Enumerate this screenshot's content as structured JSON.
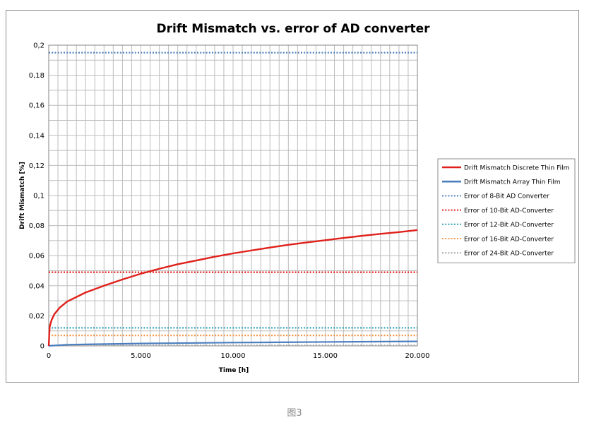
{
  "chart_data": {
    "type": "line",
    "title": "Drift Mismatch vs. error of AD converter",
    "xlabel": "Time [h]",
    "ylabel": "Drift Mismatch [%]",
    "xlim": [
      0,
      20000
    ],
    "ylim": [
      0,
      0.2
    ],
    "x_ticks": [
      "0",
      "5.000",
      "10.000",
      "15.000",
      "20.000"
    ],
    "y_ticks": [
      "0",
      "0,02",
      "0,04",
      "0,06",
      "0,08",
      "0,1",
      "0,12",
      "0,14",
      "0,16",
      "0,18",
      "0,2"
    ],
    "grid": true,
    "legend_position": "right",
    "series": [
      {
        "name": "Drift Mismatch Discrete Thin Film",
        "color": "#e0201b",
        "style": "solid",
        "x": [
          0,
          50,
          150,
          300,
          600,
          1000,
          2000,
          3000,
          4000,
          5000,
          6000,
          7000,
          8000,
          9000,
          10000,
          11000,
          12000,
          13000,
          14000,
          15000,
          16000,
          17000,
          18000,
          19000,
          20000
        ],
        "y": [
          0,
          0.0127,
          0.017,
          0.021,
          0.0255,
          0.0295,
          0.0355,
          0.04,
          0.0442,
          0.048,
          0.0513,
          0.0543,
          0.0568,
          0.0593,
          0.0615,
          0.0635,
          0.0654,
          0.0672,
          0.0688,
          0.0703,
          0.0718,
          0.0732,
          0.0745,
          0.0757,
          0.077
        ]
      },
      {
        "name": "Drift Mismatch Array Thin Film",
        "color": "#4a7ebf",
        "style": "solid",
        "x": [
          0,
          1000,
          5000,
          10000,
          15000,
          20000
        ],
        "y": [
          0,
          0.0008,
          0.0016,
          0.0022,
          0.0026,
          0.003
        ]
      },
      {
        "name": "Error of 8-Bit AD Converter",
        "color": "#4f81bd",
        "style": "dotted",
        "x": [
          0,
          20000
        ],
        "y": [
          0.195,
          0.195
        ]
      },
      {
        "name": "Error of 10-Bit AD-Converter",
        "color": "#e0201b",
        "style": "dotted",
        "x": [
          0,
          20000
        ],
        "y": [
          0.049,
          0.049
        ]
      },
      {
        "name": "Error of 12-Bit AD-Converter",
        "color": "#2e9fb2",
        "style": "dotted",
        "x": [
          0,
          20000
        ],
        "y": [
          0.012,
          0.012
        ]
      },
      {
        "name": "Error of 16-Bit AD-Converter",
        "color": "#f79646",
        "style": "dotted",
        "x": [
          0,
          20000
        ],
        "y": [
          0.007,
          0.007
        ]
      },
      {
        "name": "Error of 24-Bit AD-Converter",
        "color": "#a6a6a6",
        "style": "dotted",
        "x": [
          0,
          20000
        ],
        "y": [
          0.0003,
          0.0003
        ]
      }
    ]
  },
  "caption": "图3"
}
